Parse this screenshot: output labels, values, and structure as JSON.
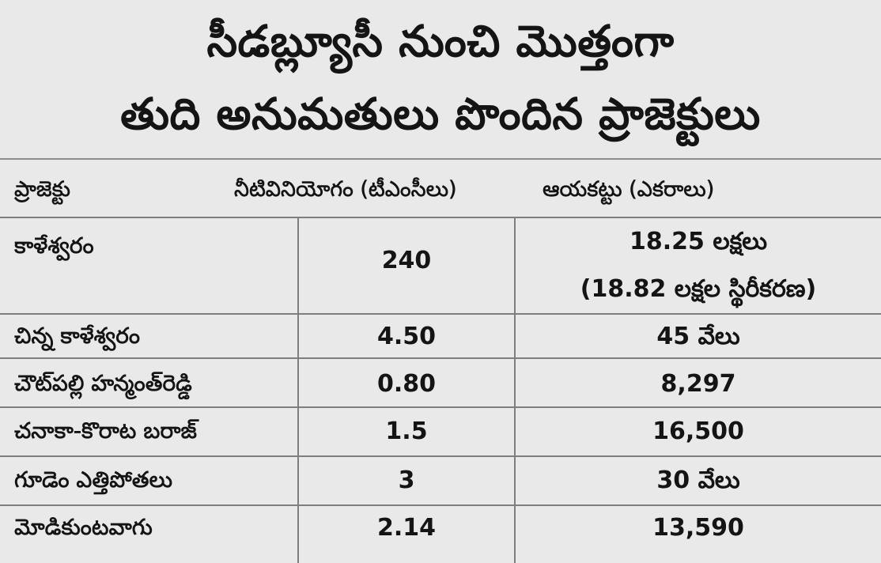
{
  "title": {
    "line1": "సీడబ్ల్యూసీ నుంచి మొత్తంగా",
    "line2": "తుది అనుమతులు పొందిన ప్రాజెక్టులు"
  },
  "table": {
    "headers": {
      "project": "ప్రాజెక్టు",
      "water": "నీటివినియోగం (టీఎంసీలు)",
      "ayacut": "ఆయకట్టు (ఎకరాలు)"
    },
    "rows": [
      {
        "project": "కాళేశ్వరం",
        "water": "240",
        "ayacut": "18.25 లక్షలు",
        "ayacut_note": "(18.82 లక్షల స్థిరీకరణ)"
      },
      {
        "project": "చిన్న కాళేశ్వరం",
        "water": "4.50",
        "ayacut": "45 వేలు"
      },
      {
        "project": "చౌట్‌పల్లి హన్మంత్‌రెడ్డి",
        "water": "0.80",
        "ayacut": "8,297"
      },
      {
        "project": "చనాకా-కొరాట బరాజ్",
        "water": "1.5",
        "ayacut": "16,500"
      },
      {
        "project": "గూడెం ఎత్తిపోతలు",
        "water": "3",
        "ayacut": "30 వేలు"
      },
      {
        "project": "మోడికుంటవాగు",
        "water": "2.14",
        "ayacut": "13,590"
      }
    ]
  }
}
